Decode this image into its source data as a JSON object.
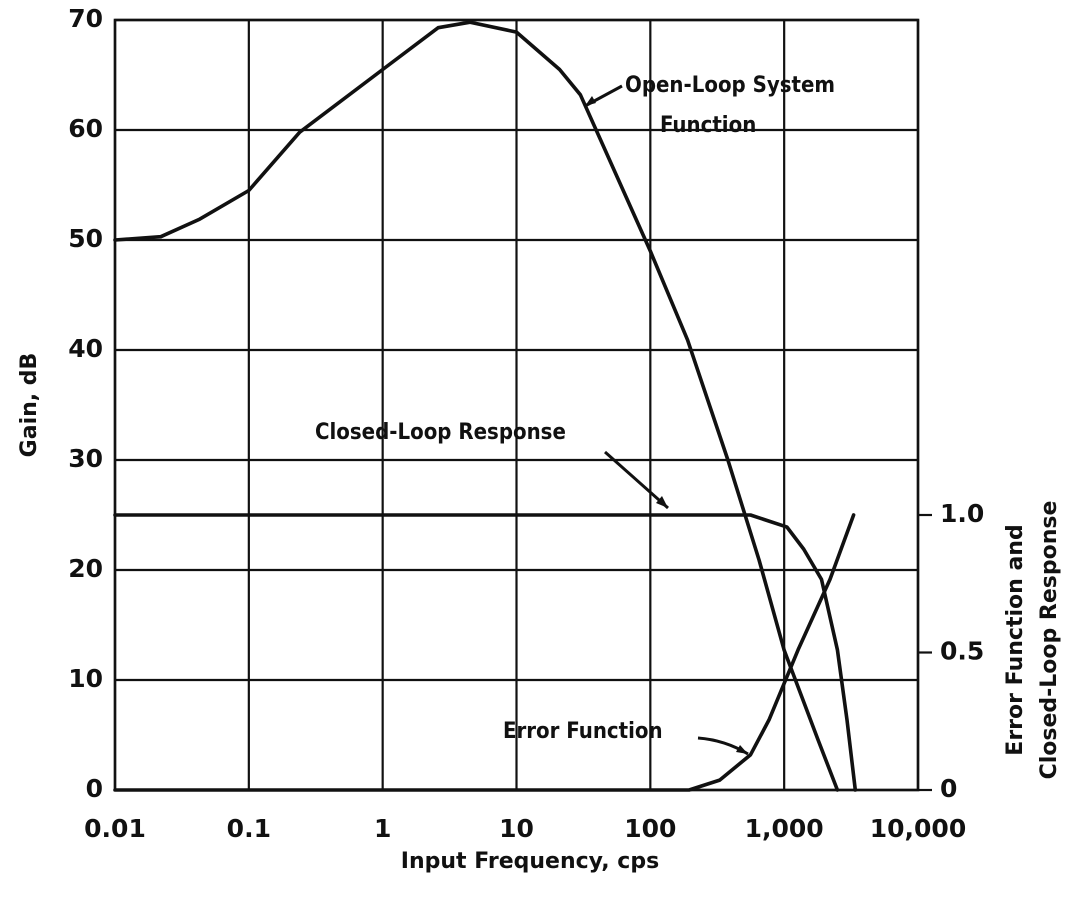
{
  "chart_data": {
    "type": "line",
    "x_label": "Input Frequency, cps",
    "y_label": "Gain, dB",
    "y2_label": [
      "Error Function and",
      "Closed-Loop Response"
    ],
    "xscale": "log",
    "xlim": [
      0.01,
      10000
    ],
    "xticks": [
      0.01,
      0.1,
      1,
      10,
      100,
      {
        "value": 1000,
        "label": "1,000"
      },
      {
        "value": 10000,
        "label": "10,000"
      }
    ],
    "ylim": [
      0,
      70
    ],
    "yticks": [
      0,
      10,
      20,
      30,
      40,
      50,
      60,
      70
    ],
    "y2lim": [
      0,
      2.8
    ],
    "y2ticks": [
      0,
      0.5,
      {
        "value": 1,
        "label": "1.0"
      }
    ],
    "grid": true,
    "series": [
      {
        "name": "Open-Loop System Function",
        "color": "#111111",
        "x": [
          0.01,
          0.022,
          0.043,
          0.1,
          0.24,
          1,
          2.6,
          4.5,
          10,
          21,
          30,
          100,
          190,
          380,
          650,
          1000,
          1800,
          2500
        ],
        "values": [
          50,
          50.3,
          51.9,
          54.5,
          59.8,
          65.5,
          69.3,
          69.8,
          68.9,
          65.5,
          63.2,
          49,
          40.9,
          30,
          20.9,
          12.7,
          4.5,
          0
        ]
      },
      {
        "name": "Closed-Loop Response",
        "color": "#111111",
        "axis": "y2",
        "x": [
          0.01,
          560,
          1050,
          1400,
          1900,
          2500,
          2950,
          3400
        ],
        "values": [
          1,
          1,
          0.956,
          0.876,
          0.766,
          0.51,
          0.255,
          0
        ]
      },
      {
        "name": "Error Function",
        "color": "#111111",
        "axis": "y2",
        "x": [
          0.01,
          195,
          330,
          560,
          770,
          1270,
          2200,
          3300
        ],
        "values": [
          0,
          0,
          0.036,
          0.128,
          0.255,
          0.51,
          0.766,
          1
        ]
      }
    ],
    "annotations": [
      {
        "text": [
          "Open-Loop System",
          "Function"
        ]
      },
      {
        "text": [
          "Closed-Loop Response"
        ]
      },
      {
        "text": [
          "Error Function"
        ]
      }
    ]
  }
}
